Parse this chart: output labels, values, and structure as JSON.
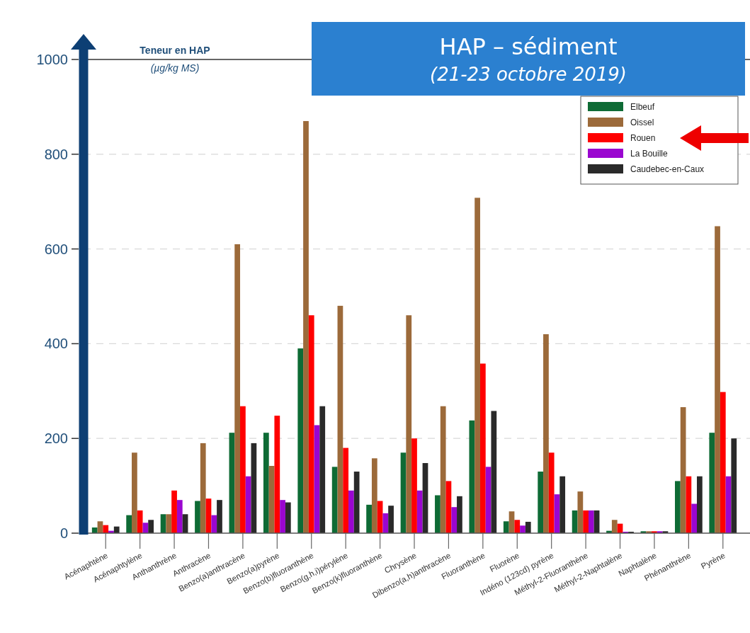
{
  "chart_data": {
    "type": "bar",
    "title": "HAP – sédiment",
    "subtitle": "(21-23 octobre 2019)",
    "ylabel": "Teneur en HAP (µg/kg MS)",
    "categories": [
      "Acénaphtène",
      "Acénaphtylène",
      "Anthanthrène",
      "Anthracène",
      "Benzo(a)anthracène",
      "Benzo(a)pyrène",
      "Benzo(b)fluoranthène",
      "Benzo(g,h,i)pérylène",
      "Benzo(k)fluoranthène",
      "Chrysène",
      "Dibenzo(a,h)anthracène",
      "Fluoranthène",
      "Fluorène",
      "Indéno (123cd) pyrène",
      "Méthyl-2-Fluoranthène",
      "Méthyl-2-Naphtalène",
      "Naphtalène",
      "Phénanthrène",
      "Pyrène"
    ],
    "series": [
      {
        "name": "Elbeuf",
        "color": "#0e6b35",
        "values": [
          12,
          38,
          40,
          68,
          212,
          212,
          390,
          140,
          60,
          170,
          80,
          238,
          25,
          130,
          48,
          5,
          4,
          110,
          212
        ]
      },
      {
        "name": "Oissel",
        "color": "#9c6a3a",
        "values": [
          25,
          170,
          40,
          190,
          610,
          142,
          870,
          480,
          158,
          460,
          268,
          708,
          46,
          420,
          88,
          28,
          4,
          266,
          648
        ]
      },
      {
        "name": "Rouen",
        "color": "#ff0000",
        "values": [
          17,
          48,
          90,
          73,
          268,
          248,
          460,
          180,
          68,
          200,
          110,
          358,
          28,
          170,
          48,
          20,
          4,
          120,
          298
        ]
      },
      {
        "name": "La Bouille",
        "color": "#9a06d0",
        "values": [
          5,
          22,
          70,
          38,
          120,
          70,
          228,
          90,
          42,
          90,
          55,
          140,
          16,
          82,
          48,
          3,
          4,
          62,
          120
        ]
      },
      {
        "name": "Caudebec-en-Caux",
        "color": "#2a2a2a",
        "values": [
          14,
          28,
          40,
          70,
          190,
          65,
          268,
          130,
          58,
          148,
          78,
          258,
          24,
          120,
          48,
          3,
          4,
          120,
          200
        ]
      }
    ],
    "ylim": [
      0,
      1000
    ],
    "yticks": [
      0,
      200,
      400,
      600,
      800,
      1000
    ],
    "grid": "y",
    "legend": "top right"
  }
}
